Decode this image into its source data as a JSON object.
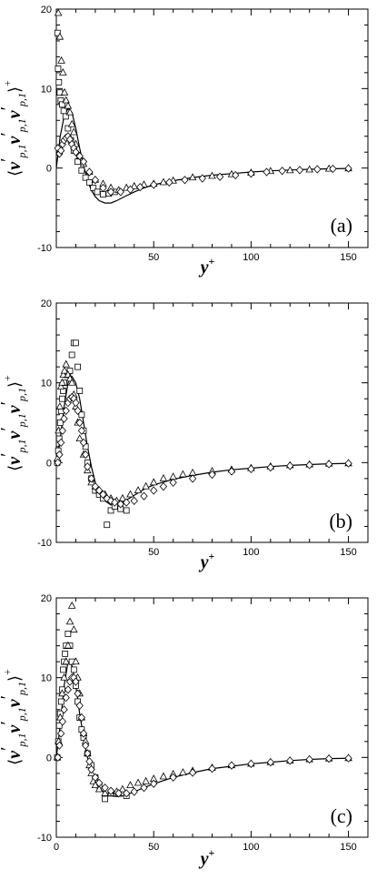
{
  "figure": {
    "panels": [
      {
        "label": "(a)",
        "x_title": "y",
        "x_title_sup": "+",
        "y_title_parts": [
          "⟨",
          "v",
          "′",
          "p,1",
          "v",
          "′",
          "p,1",
          "v",
          "′",
          "p,1",
          "⟩",
          "+"
        ]
      },
      {
        "label": "(b)",
        "x_title": "y",
        "x_title_sup": "+",
        "y_title_parts": [
          "⟨",
          "v",
          "′",
          "p,1",
          "v",
          "′",
          "p,1",
          "v",
          "′",
          "p,1",
          "⟩",
          "+"
        ]
      },
      {
        "label": "(c)",
        "x_title": "y",
        "x_title_sup": "+",
        "y_title_parts": [
          "⟨",
          "v",
          "′",
          "p,1",
          "v",
          "′",
          "p,1",
          "v",
          "′",
          "p,1",
          "⟩",
          "+"
        ]
      }
    ]
  },
  "chart_data": [
    {
      "type": "scatter",
      "title": "",
      "label": "(a)",
      "xlabel": "y+",
      "ylabel": "⟨v′p,1 v′p,1 v′p,1⟩+",
      "xlim": [
        0,
        160
      ],
      "ylim": [
        -10,
        20
      ],
      "xticks": [
        50,
        100,
        150
      ],
      "yticks": [
        -10,
        0,
        10,
        20
      ],
      "grid": false,
      "line": {
        "x": [
          0,
          2,
          4,
          6,
          8,
          10,
          12,
          14,
          16,
          18,
          20,
          22,
          25,
          28,
          31,
          35,
          40,
          45,
          50,
          60,
          70,
          80,
          90,
          100,
          110,
          120,
          130,
          140,
          150
        ],
        "y": [
          0,
          4,
          6.5,
          7.5,
          7,
          5,
          2.5,
          0.3,
          -1.5,
          -2.8,
          -3.6,
          -4.1,
          -4.4,
          -4.4,
          -4.1,
          -3.6,
          -3.0,
          -2.5,
          -2.1,
          -1.6,
          -1.2,
          -0.9,
          -0.7,
          -0.5,
          -0.35,
          -0.25,
          -0.15,
          -0.1,
          -0.05
        ]
      },
      "series": [
        {
          "marker": "square",
          "x": [
            0.6,
            0.9,
            1.3,
            1.8,
            2.3,
            3,
            3.8,
            4.8,
            6,
            7.5,
            9,
            11,
            13,
            15,
            17,
            19,
            21,
            24,
            27,
            30
          ],
          "y": [
            17,
            12.5,
            10.8,
            9.5,
            8.5,
            8,
            7.2,
            6.5,
            5,
            3.5,
            2.2,
            0.8,
            -0.3,
            -1.2,
            -1.8,
            -2.5,
            -3,
            -3.3,
            -3.2,
            -3
          ]
        },
        {
          "marker": "triangle",
          "x": [
            1,
            1.8,
            2.6,
            3.4,
            4.2,
            5,
            6,
            7,
            8,
            9,
            10,
            12,
            14,
            17,
            20,
            24,
            28,
            32,
            36,
            40,
            45,
            50,
            55,
            60,
            70,
            80,
            90,
            100,
            110,
            120,
            130,
            140,
            150
          ],
          "y": [
            19.5,
            16.5,
            13.5,
            12,
            9.5,
            8.5,
            7.8,
            7,
            5.5,
            4.5,
            3,
            1.5,
            0.5,
            -0.5,
            -1.5,
            -2,
            -2.5,
            -2.8,
            -2.5,
            -2.3,
            -2.1,
            -2,
            -1.8,
            -1.6,
            -1.2,
            -1,
            -0.8,
            -0.6,
            -0.4,
            -0.3,
            -0.2,
            -0.1,
            -0.05
          ]
        },
        {
          "marker": "diamond",
          "x": [
            0.8,
            1.6,
            2.4,
            3.2,
            4,
            5,
            6,
            7,
            8,
            9,
            10,
            12,
            14,
            17,
            20,
            24,
            28,
            33,
            38,
            43,
            50,
            58,
            66,
            75,
            84,
            92,
            100,
            108,
            116,
            125,
            134,
            142,
            150
          ],
          "y": [
            2.5,
            1.8,
            2.2,
            3,
            3.5,
            3.8,
            4,
            3.6,
            3,
            2.5,
            2,
            1.5,
            0.8,
            -0.5,
            -1.5,
            -2.5,
            -3,
            -3,
            -2.7,
            -2.4,
            -2.1,
            -1.8,
            -1.5,
            -1.3,
            -1.1,
            -0.9,
            -0.7,
            -0.5,
            -0.35,
            -0.25,
            -0.15,
            -0.1,
            -0.05
          ]
        }
      ]
    },
    {
      "type": "scatter",
      "title": "",
      "label": "(b)",
      "xlabel": "y+",
      "ylabel": "⟨v′p,1 v′p,1 v′p,1⟩+",
      "xlim": [
        0,
        160
      ],
      "ylim": [
        -10,
        20
      ],
      "xticks": [
        50,
        100,
        150
      ],
      "yticks": [
        -10,
        0,
        10,
        20
      ],
      "grid": false,
      "line": {
        "x": [
          0,
          2,
          4,
          6,
          8,
          10,
          12,
          14,
          16,
          18,
          20,
          22,
          25,
          28,
          31,
          34,
          38,
          42,
          46,
          50,
          60,
          70,
          80,
          90,
          100,
          110,
          120,
          130,
          140,
          150
        ],
        "y": [
          0,
          3,
          7,
          10,
          10.8,
          10,
          8,
          5,
          2,
          -0.5,
          -2.5,
          -3.8,
          -4.8,
          -5.3,
          -5.3,
          -5,
          -4.4,
          -3.8,
          -3.2,
          -2.8,
          -2.1,
          -1.6,
          -1.2,
          -0.9,
          -0.7,
          -0.5,
          -0.35,
          -0.25,
          -0.15,
          -0.1
        ]
      },
      "series": [
        {
          "marker": "square",
          "x": [
            0.5,
            1,
            1.5,
            2,
            2.5,
            3,
            3.5,
            4,
            5,
            6,
            7,
            8,
            9,
            10,
            11,
            12,
            13,
            14,
            15,
            16,
            18,
            20,
            22,
            24,
            26,
            28,
            30,
            33,
            36
          ],
          "y": [
            0,
            1.5,
            3,
            5,
            6.5,
            8,
            9,
            10,
            11,
            11,
            11.5,
            13.5,
            15,
            15,
            12,
            9,
            6,
            4,
            2,
            0,
            -2,
            -3.5,
            -4,
            -4.5,
            -7.8,
            -6,
            -5.5,
            -5.8,
            -6
          ]
        },
        {
          "marker": "triangle",
          "x": [
            0.6,
            1.2,
            1.8,
            2.4,
            3,
            3.6,
            4.2,
            5,
            6,
            7,
            8,
            9,
            10,
            11,
            12,
            14,
            16,
            18,
            20,
            22,
            25,
            28,
            31,
            34,
            38,
            42,
            46,
            50,
            55,
            60,
            65,
            70,
            80,
            90,
            100,
            110,
            120,
            130,
            140,
            150
          ],
          "y": [
            0.5,
            4,
            7,
            9.5,
            10,
            11,
            11.5,
            12.3,
            11,
            10.5,
            10,
            8.5,
            7,
            5,
            3,
            1,
            -1,
            -2.5,
            -3,
            -3.5,
            -4,
            -4.5,
            -4.8,
            -4.5,
            -4,
            -3.5,
            -3,
            -2.5,
            -2,
            -1.8,
            -1.5,
            -1.3,
            -1.1,
            -0.9,
            -0.7,
            -0.5,
            -0.35,
            -0.25,
            -0.15,
            -0.1
          ]
        },
        {
          "marker": "diamond",
          "x": [
            0.8,
            1.6,
            2.4,
            3.2,
            4,
            5,
            6,
            7,
            8,
            9,
            10,
            11,
            12,
            13,
            14,
            15,
            16,
            18,
            20,
            22,
            24,
            26,
            28,
            30,
            33,
            36,
            40,
            45,
            50,
            55,
            60,
            70,
            80,
            90,
            100,
            110,
            120,
            130,
            140,
            150
          ],
          "y": [
            0,
            1,
            2.5,
            4,
            5.5,
            6.5,
            7.5,
            8,
            8.2,
            8,
            7.5,
            6.5,
            5,
            4,
            2.5,
            1,
            -0.5,
            -2,
            -3,
            -3.5,
            -4,
            -4.5,
            -4.8,
            -5,
            -5.2,
            -5,
            -4.8,
            -4.2,
            -3.5,
            -3,
            -2.5,
            -2,
            -1.5,
            -1.1,
            -0.8,
            -0.6,
            -0.4,
            -0.3,
            -0.2,
            -0.1
          ]
        }
      ]
    },
    {
      "type": "scatter",
      "title": "",
      "label": "(c)",
      "xlabel": "y+",
      "ylabel": "⟨v′p,1 v′p,1 v′p,1⟩+",
      "xlim": [
        0,
        160
      ],
      "ylim": [
        -10,
        20
      ],
      "xticks": [
        0,
        50,
        100,
        150
      ],
      "yticks": [
        -10,
        0,
        10,
        20
      ],
      "grid": false,
      "line": {
        "x": [
          0,
          2,
          4,
          6,
          8,
          10,
          12,
          14,
          16,
          18,
          20,
          22,
          25,
          28,
          31,
          35,
          40,
          45,
          50,
          60,
          70,
          80,
          90,
          100,
          110,
          120,
          130,
          140,
          150
        ],
        "y": [
          0,
          4,
          9,
          12,
          11.5,
          9,
          5.5,
          2.5,
          0,
          -1.8,
          -3,
          -3.8,
          -4.5,
          -4.8,
          -4.9,
          -4.8,
          -4.3,
          -3.8,
          -3.3,
          -2.5,
          -1.9,
          -1.4,
          -1.1,
          -0.8,
          -0.6,
          -0.4,
          -0.25,
          -0.15,
          -0.1
        ]
      },
      "series": [
        {
          "marker": "square",
          "x": [
            0.5,
            1,
            1.5,
            2,
            2.5,
            3,
            3.5,
            4,
            4.5,
            5,
            6,
            7,
            8,
            9,
            10,
            11,
            12,
            13,
            14,
            16,
            18,
            20,
            22,
            25,
            28,
            32,
            36
          ],
          "y": [
            0,
            2,
            4,
            5.5,
            7,
            8.5,
            11,
            12,
            13,
            14,
            15.5,
            14,
            12,
            11,
            9,
            7,
            5,
            3.5,
            2.5,
            0.5,
            -1,
            -2.5,
            -3.5,
            -5.2,
            -4.5,
            -4.5,
            -4.8
          ]
        },
        {
          "marker": "triangle",
          "x": [
            0.5,
            1.2,
            2,
            3,
            4,
            5,
            6,
            7,
            8,
            9,
            10,
            11,
            12,
            13,
            14,
            15,
            16,
            17,
            18,
            19,
            20,
            22,
            25,
            28,
            31,
            34,
            38,
            42,
            46,
            50,
            55,
            60,
            65,
            70,
            80,
            90,
            100,
            110,
            120,
            130,
            140,
            150
          ],
          "y": [
            0,
            2,
            5,
            8,
            10,
            12,
            14,
            17,
            19,
            16,
            12,
            10,
            8,
            5,
            3,
            2,
            0.5,
            -1,
            -2,
            -3,
            -3.5,
            -4,
            -4.5,
            -4.5,
            -4.3,
            -4,
            -3.5,
            -3.2,
            -3,
            -2.7,
            -2.4,
            -2.1,
            -1.9,
            -1.7,
            -1.3,
            -1,
            -0.8,
            -0.6,
            -0.4,
            -0.25,
            -0.15,
            -0.1
          ]
        },
        {
          "marker": "diamond",
          "x": [
            0.8,
            1.6,
            2.4,
            3.2,
            4,
            5,
            6,
            7,
            8,
            9,
            10,
            11,
            12,
            13,
            14,
            15,
            16,
            17,
            18,
            20,
            22,
            25,
            28,
            32,
            36,
            40,
            45,
            50,
            60,
            70,
            80,
            90,
            100,
            110,
            120,
            130,
            140,
            150
          ],
          "y": [
            0,
            1.5,
            3,
            4.5,
            6,
            7.5,
            8.5,
            9.5,
            10,
            10,
            9.5,
            8,
            6.5,
            5,
            3,
            1.5,
            0.5,
            -0.5,
            -1.5,
            -2.5,
            -3.2,
            -3.8,
            -4.2,
            -4.5,
            -4.5,
            -4.3,
            -3.8,
            -3.3,
            -2.5,
            -1.9,
            -1.4,
            -1,
            -0.8,
            -0.6,
            -0.4,
            -0.25,
            -0.15,
            -0.1
          ]
        }
      ]
    }
  ]
}
